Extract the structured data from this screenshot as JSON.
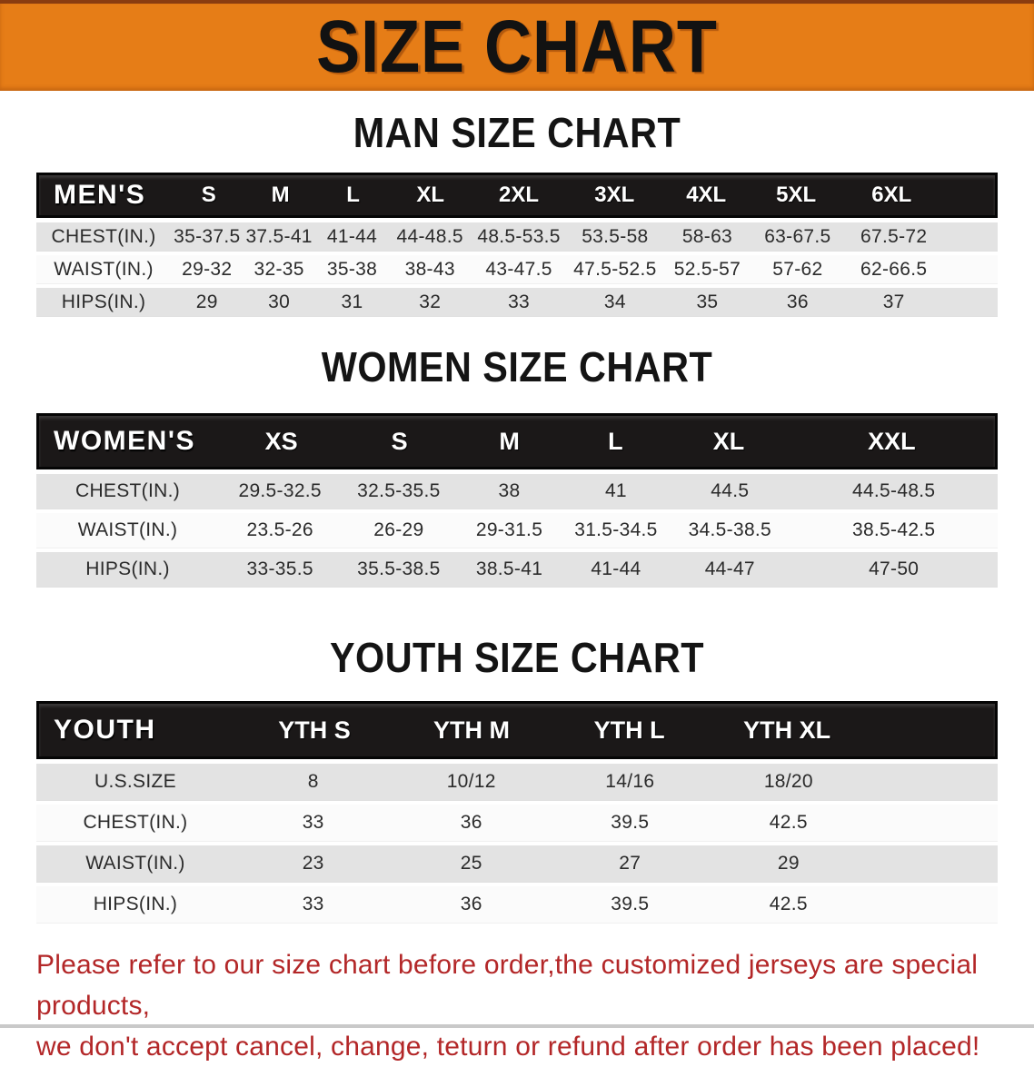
{
  "banner": {
    "title": "SIZE CHART"
  },
  "sections": {
    "men": {
      "title": "MAN SIZE CHART",
      "header": [
        "MEN'S",
        "S",
        "M",
        "L",
        "XL",
        "2XL",
        "3XL",
        "4XL",
        "5XL",
        "6XL"
      ],
      "rows": [
        {
          "label": "CHEST(IN.)",
          "values": [
            "35-37.5",
            "37.5-41",
            "41-44",
            "44-48.5",
            "48.5-53.5",
            "53.5-58",
            "58-63",
            "63-67.5",
            "67.5-72"
          ]
        },
        {
          "label": "WAIST(IN.)",
          "values": [
            "29-32",
            "32-35",
            "35-38",
            "38-43",
            "43-47.5",
            "47.5-52.5",
            "52.5-57",
            "57-62",
            "62-66.5"
          ]
        },
        {
          "label": "HIPS(IN.)",
          "values": [
            "29",
            "30",
            "31",
            "32",
            "33",
            "34",
            "35",
            "36",
            "37"
          ]
        }
      ]
    },
    "women": {
      "title": "WOMEN SIZE CHART",
      "header": [
        "WOMEN'S",
        "XS",
        "S",
        "M",
        "L",
        "XL",
        "XXL"
      ],
      "rows": [
        {
          "label": "CHEST(IN.)",
          "values": [
            "29.5-32.5",
            "32.5-35.5",
            "38",
            "41",
            "44.5",
            "44.5-48.5"
          ]
        },
        {
          "label": "WAIST(IN.)",
          "values": [
            "23.5-26",
            "26-29",
            "29-31.5",
            "31.5-34.5",
            "34.5-38.5",
            "38.5-42.5"
          ]
        },
        {
          "label": "HIPS(IN.)",
          "values": [
            "33-35.5",
            "35.5-38.5",
            "38.5-41",
            "41-44",
            "44-47",
            "47-50"
          ]
        }
      ]
    },
    "youth": {
      "title": "YOUTH SIZE CHART",
      "header": [
        "YOUTH",
        "YTH S",
        "YTH M",
        "YTH L",
        "YTH XL"
      ],
      "rows": [
        {
          "label": "U.S.SIZE",
          "values": [
            "8",
            "10/12",
            "14/16",
            "18/20"
          ]
        },
        {
          "label": "CHEST(IN.)",
          "values": [
            "33",
            "36",
            "39.5",
            "42.5"
          ]
        },
        {
          "label": "WAIST(IN.)",
          "values": [
            "23",
            "25",
            "27",
            "29"
          ]
        },
        {
          "label": "HIPS(IN.)",
          "values": [
            "33",
            "36",
            "39.5",
            "42.5"
          ]
        }
      ]
    }
  },
  "footer": {
    "line1": "Please refer to our size chart before order,the customized jerseys are special products,",
    "line2": "we don't accept cancel, change, teturn or refund after order has been placed!"
  },
  "colors": {
    "banner_bg": "#e67d17",
    "header_bar_bg": "#1b1818",
    "row_gray": "#e3e3e3",
    "row_white": "#fbfbfb",
    "footer_red": "#b32728"
  }
}
